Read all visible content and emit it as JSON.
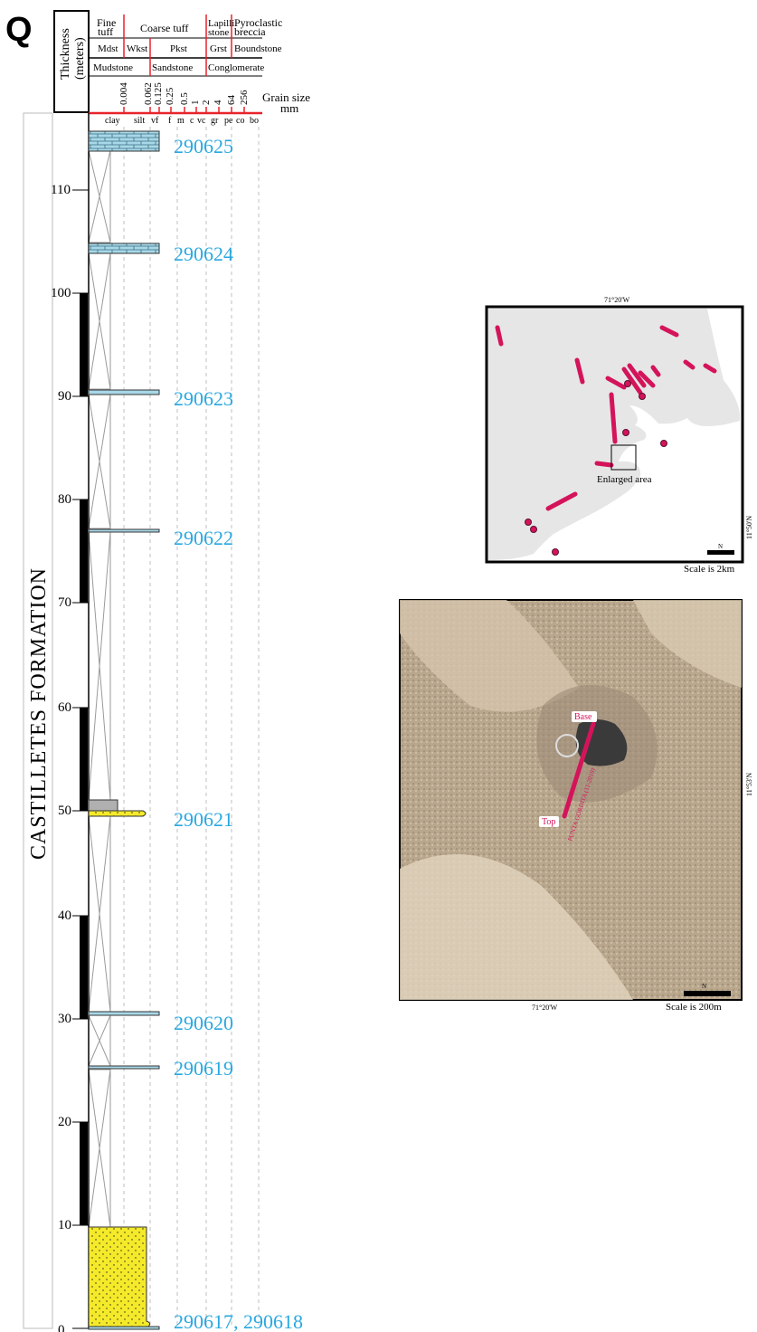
{
  "figure": {
    "panel_letter": "Q",
    "formation": "CASTILLETES FORMATION"
  },
  "header": {
    "thickness_label_1": "Thickness",
    "thickness_label_2": "(meters)",
    "row1": [
      "Fine",
      "tuff",
      "Coarse tuff",
      "Lapilli",
      "stone",
      "Pyroclastic",
      "breccia"
    ],
    "row2": [
      "Mdst",
      "Wkst",
      "Pkst",
      "Grst",
      "Boundstone"
    ],
    "row3": [
      "Mudstone",
      "Sandstone",
      "Conglomerate"
    ],
    "grain_sizes": [
      "0.004",
      "0.062",
      "0.125",
      "0.25",
      "0.5",
      "1",
      "2",
      "4",
      "64",
      "256"
    ],
    "grain_size_label": "Grain size",
    "grain_size_unit": "mm",
    "classes": [
      "clay",
      "silt",
      "vf",
      "f",
      "m",
      "c",
      "vc",
      "gr",
      "pe",
      "co",
      "bo"
    ]
  },
  "axis": {
    "ticks": [
      "0",
      "10",
      "20",
      "30",
      "40",
      "50",
      "60",
      "70",
      "80",
      "90",
      "100",
      "110"
    ]
  },
  "samples": [
    "290625",
    "290624",
    "290623",
    "290622",
    "290621",
    "290620",
    "290619",
    "290617, 290618"
  ],
  "map_top": {
    "lon_label": "71°20'W",
    "lat_label": "11°50'N",
    "enlarged_label": "Enlarged area",
    "north": "N",
    "scale": "Scale is 2km"
  },
  "map_bottom": {
    "lon_label": "71°20'W",
    "lat_label": "11°53'N",
    "base_label": "Base",
    "top_label": "Top",
    "section_label": "PUNTA GORDITA (11-2019)",
    "north": "N",
    "scale": "Scale is 200m"
  },
  "colors": {
    "limestone": "#a8d8e8",
    "sandstone": "#f5ea2a",
    "sample_text": "#29a8e0",
    "section_line": "#d4145a",
    "red_grid": "#e8232a"
  }
}
